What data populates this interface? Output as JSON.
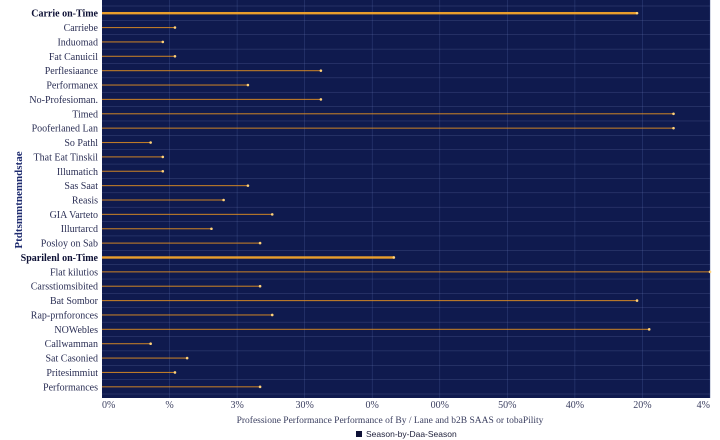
{
  "chart_data": {
    "type": "bar",
    "orientation": "horizontal",
    "title": "",
    "xlabel": "Professione Performance Performance of By / Lane and b2B SAAS or tobaPility",
    "ylabel": "Ptdtsmmtnemndstae",
    "legend": {
      "position": "bottom-center",
      "entries": [
        {
          "label": "Season-by-Daa-Season",
          "color": "#0d1035"
        }
      ]
    },
    "x_tick_labels": [
      "0%",
      "%",
      "3%",
      "30%",
      "0%",
      "00%",
      "50%",
      "40%",
      "20%",
      "4%"
    ],
    "categories": [
      "Carrie on-Time",
      "Carriebe",
      "Induomad",
      "Fat Canuicil",
      "Perflesiaance",
      "Performanex",
      "No-Profesioman.",
      "Timed",
      "Pooferlaned Lan",
      "So Pathl",
      "That Eat Tinskil",
      "Illumatich",
      "Sas Saat",
      "Reasis",
      "GIA Varteto",
      "Illurtarcd",
      "Posloy on Sab",
      "Sparilenl on-Time",
      "Flat kilutios",
      "Carsstiomsibited",
      "Bat Sombor",
      "Rap-prnforonces",
      "NOWebles",
      "Callwamman",
      "Sat Casonied",
      "Pritesimmiut",
      "Performances"
    ],
    "bold_categories": [
      "Carrie on-Time",
      "Sparilenl on-Time"
    ],
    "values": [
      88,
      12,
      10,
      12,
      36,
      24,
      36,
      94,
      94,
      8,
      10,
      10,
      24,
      20,
      28,
      18,
      26,
      48,
      100,
      26,
      88,
      28,
      90,
      8,
      14,
      12,
      26
    ],
    "xlim": [
      0,
      100
    ],
    "grid": true,
    "colors": {
      "plot_background": "#0f1a4e",
      "bar": "#e8921f",
      "highlight_bar": "#f6a52a",
      "grid": "#3a4a86",
      "label_text": "#2b2f55"
    }
  }
}
